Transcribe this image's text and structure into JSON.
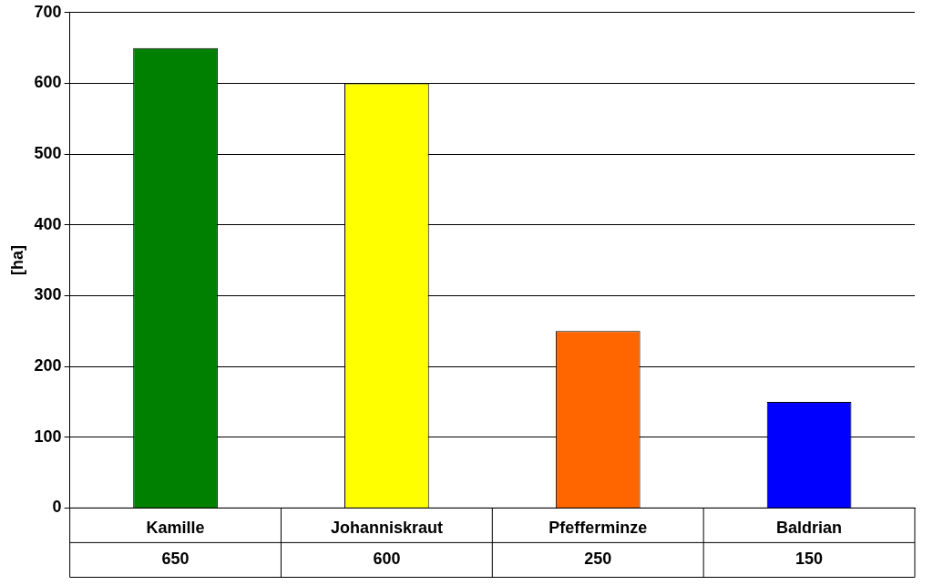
{
  "chart_data": {
    "type": "bar",
    "ylabel": "[ha]",
    "categories": [
      "Kamille",
      "Johanniskraut",
      "Pfefferminze",
      "Baldrian"
    ],
    "values": [
      650,
      600,
      250,
      150
    ],
    "colors": [
      "#008000",
      "#ffff00",
      "#ff6600",
      "#0000ff"
    ],
    "ylim": [
      0,
      700
    ],
    "yticks": [
      0,
      100,
      200,
      300,
      400,
      500,
      600,
      700
    ],
    "grid": "y",
    "legend": false,
    "data_labels": true
  }
}
